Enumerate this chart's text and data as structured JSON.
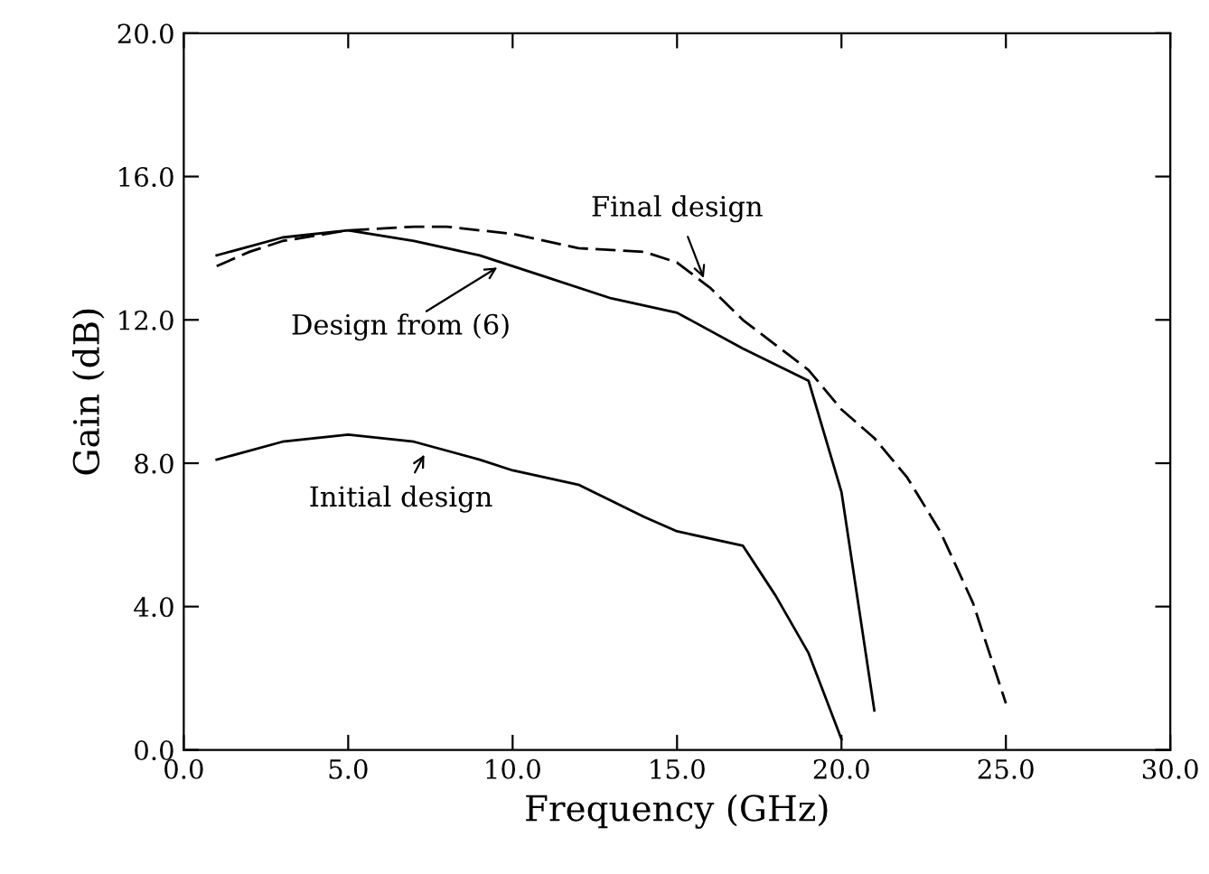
{
  "chart_data": {
    "type": "line",
    "xlabel": "Frequency (GHz)",
    "ylabel": "Gain (dB)",
    "xlim": [
      0,
      30
    ],
    "ylim": [
      0,
      20
    ],
    "xticks": [
      {
        "value": 0,
        "label": "0.0"
      },
      {
        "value": 5,
        "label": "5.0"
      },
      {
        "value": 10,
        "label": "10.0"
      },
      {
        "value": 15,
        "label": "15.0"
      },
      {
        "value": 20,
        "label": "20.0"
      },
      {
        "value": 25,
        "label": "25.0"
      },
      {
        "value": 30,
        "label": "30.0"
      }
    ],
    "yticks": [
      {
        "value": 0,
        "label": "0.0"
      },
      {
        "value": 4,
        "label": "4.0"
      },
      {
        "value": 8,
        "label": "8.0"
      },
      {
        "value": 12,
        "label": "12.0"
      },
      {
        "value": 16,
        "label": "16.0"
      },
      {
        "value": 20,
        "label": "20.0"
      }
    ],
    "grid": false,
    "legend": false,
    "marker": "none",
    "series": [
      {
        "color": "#000000",
        "line_style": "dashed",
        "x": [
          1,
          2,
          3,
          5,
          7,
          8,
          10,
          12,
          14,
          15,
          16,
          17,
          18,
          19,
          20,
          21,
          22,
          23,
          24,
          25
        ],
        "values": [
          13.5,
          13.9,
          14.2,
          14.5,
          14.6,
          14.6,
          14.4,
          14.0,
          13.9,
          13.6,
          12.9,
          12.0,
          11.3,
          10.6,
          9.5,
          8.7,
          7.6,
          6.1,
          4.1,
          1.3
        ]
      },
      {
        "color": "#000000",
        "line_style": "solid",
        "x": [
          1,
          3,
          5,
          7,
          9,
          11,
          13,
          15,
          17,
          19,
          20,
          21
        ],
        "values": [
          13.8,
          14.3,
          14.5,
          14.2,
          13.8,
          13.2,
          12.6,
          12.2,
          11.2,
          10.3,
          7.2,
          1.1
        ]
      },
      {
        "color": "#000000",
        "line_style": "solid",
        "x": [
          1,
          3,
          5,
          7,
          9,
          10,
          12,
          14,
          15,
          17,
          18,
          19,
          20
        ],
        "values": [
          8.1,
          8.6,
          8.8,
          8.6,
          8.1,
          7.8,
          7.4,
          6.5,
          6.1,
          5.7,
          4.3,
          2.7,
          0.3
        ]
      }
    ],
    "annotations": [
      "Final design",
      "Design from (6)",
      "Initial design"
    ]
  }
}
